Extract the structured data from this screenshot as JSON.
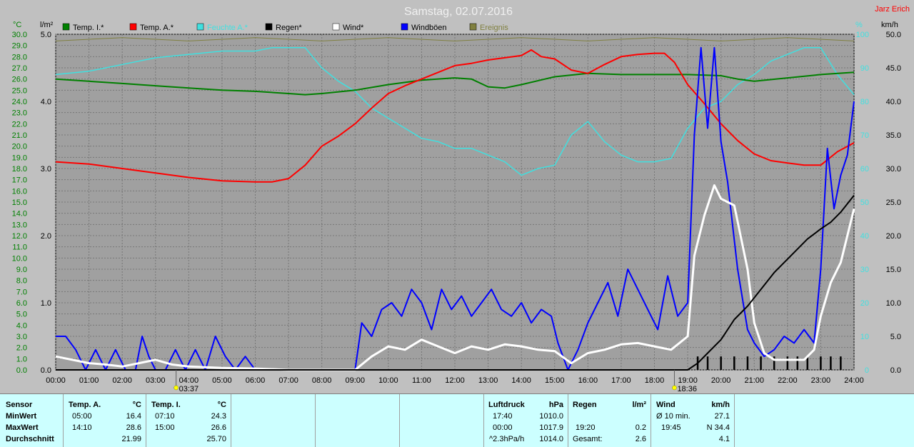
{
  "title": "Samstag, 02.07.2016",
  "author": "Jarz Erich",
  "units": {
    "left_temp": "°C",
    "left_rain": "l/m²",
    "right_pct": "%",
    "right_kmh": "km/h"
  },
  "legend": [
    {
      "name": "Temp. I.*",
      "color": "#008000"
    },
    {
      "name": "Temp. A.*",
      "color": "#ff0000"
    },
    {
      "name": "Feuchte A.*",
      "color": "#40e0e0"
    },
    {
      "name": "Regen*",
      "color": "#000000"
    },
    {
      "name": "Wind*",
      "color": "#ffffff"
    },
    {
      "name": "Windböen",
      "color": "#0000ff"
    },
    {
      "name": "Ereignis",
      "color": "#808040"
    }
  ],
  "markers": [
    {
      "time": "03:37",
      "hour": 3.62
    },
    {
      "time": "18:36",
      "hour": 18.6
    }
  ],
  "chart_data": {
    "type": "line",
    "x_unit": "hour of day",
    "xlim": [
      0,
      24
    ],
    "x_ticks": [
      "00:00",
      "01:00",
      "02:00",
      "03:00",
      "04:00",
      "05:00",
      "06:00",
      "07:00",
      "08:00",
      "09:00",
      "10:00",
      "11:00",
      "12:00",
      "13:00",
      "14:00",
      "15:00",
      "16:00",
      "17:00",
      "18:00",
      "19:00",
      "20:00",
      "21:00",
      "22:00",
      "23:00",
      "24:00"
    ],
    "axes": {
      "temp": {
        "label": "°C",
        "range": [
          0,
          30
        ],
        "ticks": [
          "0.0",
          "1.0",
          "2.0",
          "3.0",
          "4.0",
          "5.0",
          "6.0",
          "7.0",
          "8.0",
          "9.0",
          "10.0",
          "11.0",
          "12.0",
          "13.0",
          "14.0",
          "15.0",
          "16.0",
          "17.0",
          "18.0",
          "19.0",
          "20.0",
          "21.0",
          "22.0",
          "23.0",
          "24.0",
          "25.0",
          "26.0",
          "27.0",
          "28.0",
          "29.0",
          "30.0"
        ]
      },
      "rain": {
        "label": "l/m²",
        "range": [
          0,
          5
        ],
        "ticks": [
          "0.0",
          "1.0",
          "2.0",
          "3.0",
          "4.0",
          "5.0"
        ]
      },
      "humidity": {
        "label": "%",
        "range": [
          0,
          100
        ],
        "ticks": [
          "0",
          "10",
          "20",
          "30",
          "40",
          "50",
          "60",
          "70",
          "80",
          "90",
          "100"
        ]
      },
      "wind": {
        "label": "km/h",
        "range": [
          0,
          50
        ],
        "ticks": [
          "0.0",
          "5.0",
          "10.0",
          "15.0",
          "20.0",
          "25.0",
          "30.0",
          "35.0",
          "40.0",
          "45.0",
          "50.0"
        ]
      }
    },
    "series": [
      {
        "name": "Temp. I.*",
        "axis": "temp",
        "color": "#008000",
        "x": [
          0,
          1,
          2,
          3,
          4,
          5,
          6,
          7,
          7.5,
          8,
          9,
          10,
          11,
          12,
          12.5,
          13,
          13.5,
          14,
          15,
          16,
          17,
          18,
          19,
          20,
          20.5,
          21,
          22,
          23,
          24
        ],
        "y": [
          26.0,
          25.8,
          25.6,
          25.4,
          25.2,
          25.0,
          24.9,
          24.7,
          24.6,
          24.7,
          25.0,
          25.5,
          25.9,
          26.1,
          26.0,
          25.3,
          25.2,
          25.5,
          26.2,
          26.5,
          26.4,
          26.4,
          26.4,
          26.3,
          26.0,
          25.8,
          26.1,
          26.4,
          26.6
        ]
      },
      {
        "name": "Temp. A.*",
        "axis": "temp",
        "color": "#ff0000",
        "x": [
          0,
          1,
          2,
          3,
          4,
          5,
          6,
          6.5,
          7,
          7.5,
          8,
          8.5,
          9,
          9.5,
          10,
          10.5,
          11,
          11.5,
          12,
          12.5,
          13,
          13.5,
          14,
          14.3,
          14.6,
          15,
          15.5,
          16,
          16.5,
          17,
          17.5,
          18,
          18.3,
          18.6,
          19,
          19.5,
          20,
          20.5,
          21,
          21.5,
          22,
          22.5,
          23,
          23.5,
          24
        ],
        "y": [
          18.6,
          18.4,
          18.0,
          17.6,
          17.2,
          16.9,
          16.8,
          16.8,
          17.1,
          18.3,
          20.0,
          20.9,
          22.0,
          23.4,
          24.7,
          25.4,
          26.0,
          26.6,
          27.2,
          27.4,
          27.7,
          27.9,
          28.1,
          28.6,
          28.0,
          27.8,
          26.8,
          26.5,
          27.3,
          28.0,
          28.2,
          28.3,
          28.3,
          27.5,
          25.5,
          23.8,
          22.0,
          20.5,
          19.3,
          18.7,
          18.5,
          18.3,
          18.3,
          19.5,
          20.3
        ]
      },
      {
        "name": "Feuchte A.*",
        "axis": "humidity",
        "color": "#40e0e0",
        "x": [
          0,
          1,
          2,
          3,
          4,
          5,
          6,
          6.5,
          7,
          7.5,
          8,
          8.5,
          9,
          9.5,
          10,
          10.5,
          11,
          11.5,
          12,
          12.5,
          13,
          13.5,
          14,
          14.5,
          15,
          15.5,
          16,
          16.5,
          17,
          17.5,
          18,
          18.5,
          19,
          19.5,
          20,
          20.5,
          21,
          21.5,
          22,
          22.5,
          23,
          23.5,
          24
        ],
        "y": [
          88,
          89,
          91,
          93,
          94,
          95,
          95,
          96,
          96,
          96,
          90,
          86,
          83,
          78,
          75,
          72,
          69,
          68,
          66,
          66,
          64,
          62,
          58,
          60,
          61,
          70,
          74,
          68,
          64,
          62,
          62,
          63,
          72,
          78,
          80,
          85,
          88,
          92,
          94,
          96,
          96,
          88,
          82
        ]
      },
      {
        "name": "Regen*",
        "axis": "rain",
        "color": "#000000",
        "x": [
          0,
          19.0,
          19.3,
          19.6,
          20.0,
          20.4,
          20.8,
          21.2,
          21.6,
          22.0,
          22.3,
          22.6,
          23.0,
          23.3,
          23.6,
          24.0
        ],
        "y": [
          0,
          0,
          0.1,
          0.25,
          0.45,
          0.75,
          0.95,
          1.2,
          1.45,
          1.65,
          1.8,
          1.95,
          2.1,
          2.2,
          2.35,
          2.6
        ]
      },
      {
        "name": "Wind*",
        "axis": "wind",
        "color": "#ffffff",
        "x": [
          0,
          0.5,
          1,
          1.5,
          2,
          2.5,
          3,
          3.5,
          4,
          5,
          6,
          7,
          8,
          9,
          9.5,
          10,
          10.5,
          11,
          11.5,
          12,
          12.5,
          13,
          13.5,
          14,
          14.5,
          15,
          15.5,
          16,
          16.5,
          17,
          17.5,
          18,
          18.5,
          19,
          19.2,
          19.5,
          19.8,
          20.0,
          20.4,
          20.8,
          21.0,
          21.3,
          21.6,
          22,
          22.5,
          22.8,
          23.0,
          23.3,
          23.6,
          24
        ],
        "y": [
          2,
          1.5,
          1.0,
          0.8,
          0.5,
          1.0,
          1.5,
          0.8,
          0.5,
          0.3,
          0.2,
          0.0,
          0.0,
          0.0,
          2.0,
          3.5,
          3.0,
          4.5,
          3.5,
          2.5,
          3.5,
          3.0,
          3.8,
          3.5,
          3.0,
          2.8,
          1.0,
          2.5,
          3.0,
          3.8,
          4.0,
          3.5,
          3.0,
          5.0,
          17.0,
          23.0,
          27.5,
          25.5,
          24.5,
          15.0,
          7.0,
          2.5,
          1.5,
          1.5,
          1.5,
          3.0,
          8.0,
          13.0,
          16.0,
          24.0
        ]
      },
      {
        "name": "Windböen",
        "axis": "wind",
        "color": "#0000ff",
        "x": [
          0,
          0.3,
          0.6,
          0.9,
          1.2,
          1.5,
          1.8,
          2.1,
          2.4,
          2.6,
          2.8,
          3.0,
          3.3,
          3.6,
          3.9,
          4.2,
          4.5,
          4.8,
          5.1,
          5.4,
          5.7,
          6.0,
          6.3,
          6.6,
          7.0,
          8.0,
          9.0,
          9.2,
          9.5,
          9.8,
          10.1,
          10.4,
          10.7,
          11.0,
          11.3,
          11.6,
          11.9,
          12.2,
          12.5,
          12.8,
          13.1,
          13.4,
          13.7,
          14.0,
          14.3,
          14.6,
          14.9,
          15.1,
          15.4,
          15.7,
          16.0,
          16.3,
          16.6,
          16.9,
          17.2,
          17.5,
          17.8,
          18.1,
          18.4,
          18.7,
          19.0,
          19.2,
          19.4,
          19.6,
          19.8,
          20.0,
          20.2,
          20.5,
          20.8,
          21.0,
          21.3,
          21.6,
          21.9,
          22.2,
          22.5,
          22.8,
          23.0,
          23.2,
          23.4,
          23.6,
          23.8,
          24.0
        ],
        "y": [
          5,
          5,
          3,
          0,
          3,
          0,
          3,
          0,
          0,
          5,
          2,
          0,
          0,
          3,
          0,
          3,
          0,
          5,
          2,
          0,
          2,
          0,
          0,
          0,
          0,
          0,
          0,
          7,
          5,
          9,
          10,
          8,
          12,
          10,
          6,
          12,
          9,
          11,
          8,
          10,
          12,
          9,
          8,
          10,
          7,
          9,
          8,
          4,
          0,
          3,
          7,
          10,
          13,
          8,
          15,
          12,
          9,
          6,
          14,
          8,
          10,
          35,
          48,
          36,
          48,
          34,
          28,
          15,
          6,
          4,
          2,
          3,
          5,
          4,
          6,
          4,
          15,
          33,
          24,
          29,
          32,
          40
        ]
      },
      {
        "name": "Ereignis",
        "axis": "humidity",
        "color": "#808040",
        "x": [
          0,
          2,
          4,
          6,
          8,
          10,
          12,
          14,
          16,
          18,
          20,
          22,
          24
        ],
        "y": [
          98,
          99,
          98,
          99,
          98,
          99,
          98,
          99,
          98,
          99,
          98,
          99,
          98
        ]
      }
    ],
    "rain_bars": {
      "axis": "rain",
      "color": "#000000",
      "x": [
        19.3,
        19.6,
        20.0,
        20.4,
        20.8,
        21.2,
        21.6,
        22.0,
        22.3,
        22.6,
        23.0,
        23.3,
        23.6
      ],
      "y": [
        0.2,
        0.2,
        0.2,
        0.2,
        0.2,
        0.2,
        0.2,
        0.2,
        0.2,
        0.2,
        0.2,
        0.2,
        0.2
      ]
    }
  },
  "stats": {
    "rows": [
      "Sensor",
      "MinWert",
      "MaxWert",
      "Durchschnitt"
    ],
    "temp_a": {
      "header": "Temp. A.",
      "unit": "°C",
      "min_time": "05:00",
      "min": "16.4",
      "max_time": "14:10",
      "max": "28.6",
      "avg": "21.99"
    },
    "temp_i": {
      "header": "Temp. I.",
      "unit": "°C",
      "min_time": "07:10",
      "min": "24.3",
      "max_time": "15:00",
      "max": "26.6",
      "avg": "25.70"
    },
    "pressure": {
      "header": "Luftdruck",
      "unit": "hPa",
      "min_time": "17:40",
      "min": "1010.0",
      "max_time": "00:00",
      "max": "1017.9",
      "trend": "^2.3hPa/h",
      "avg": "1014.0"
    },
    "rain": {
      "header": "Regen",
      "unit": "l/m²",
      "max_time": "19:20",
      "max": "0.2",
      "total_label": "Gesamt:",
      "total": "2.6"
    },
    "wind": {
      "header": "Wind",
      "unit": "km/h",
      "avg_label": "Ø 10 min.",
      "avg10": "27.1",
      "max_time": "19:45",
      "max": "N 34.4",
      "avg": "4.1"
    }
  }
}
